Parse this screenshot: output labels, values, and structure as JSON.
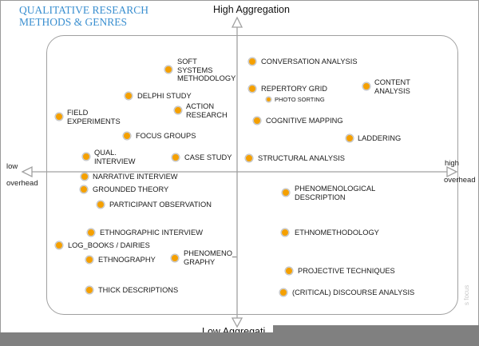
{
  "title": {
    "line1": "QUALITATIVE RESEARCH",
    "line2": "METHODS & GENRES"
  },
  "axes": {
    "top": "High Aggregation",
    "bottom": "Low Aggregati",
    "left_top": "low",
    "left_bottom": "overhead",
    "right_top": "high",
    "right_bottom": "overhead"
  },
  "side_text": "s focus",
  "colors": {
    "dot": "#f5a000",
    "title": "#3a8fd0",
    "lines": "#a0a0a0"
  },
  "methods": [
    "SOFT\nSYSTEMS\nMETHODOLOGY",
    "DELPHI STUDY",
    "ACTION\nRESEARCH",
    "FIELD\nEXPERIMENTS",
    "FOCUS GROUPS",
    "QUAL.\nINTERVIEW",
    "CASE STUDY",
    "NARRATIVE INTERVIEW",
    "GROUNDED THEORY",
    "PARTICIPANT OBSERVATION",
    "ETHNOGRAPHIC INTERVIEW",
    "LOG_BOOKS / DAIRIES",
    "ETHNOGRAPHY",
    "PHENOMENO_\nGRAPHY",
    "THICK DESCRIPTIONS",
    "CONVERSATION ANALYSIS",
    "REPERTORY GRID",
    "PHOTO SORTING",
    "CONTENT\nANALYSIS",
    "COGNITIVE MAPPING",
    "LADDERING",
    "STRUCTURAL ANALYSIS",
    "PHENOMENOLOGICAL\nDESCRIPTION",
    "ETHNOMETHODOLOGY",
    "PROJECTIVE TECHNIQUES",
    "(CRITICAL) DISCOURSE ANALYSIS"
  ]
}
